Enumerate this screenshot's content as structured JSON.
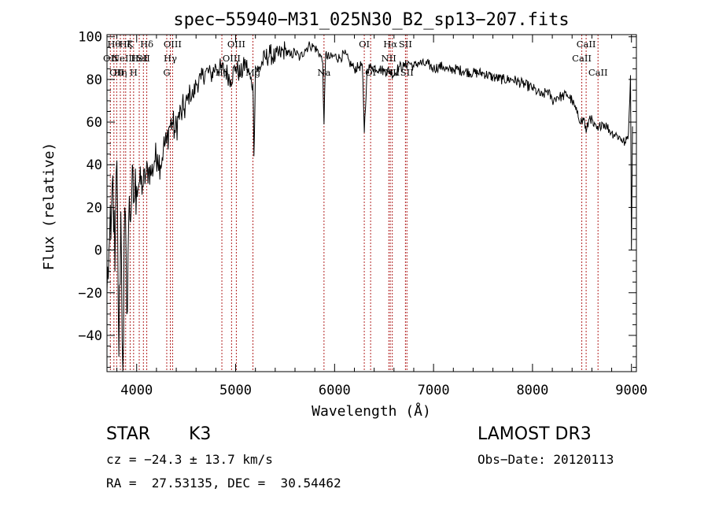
{
  "chart_data": {
    "type": "line",
    "title": "spec−55940−M31_025N30_B2_sp13−207.fits",
    "xlabel": "Wavelength (Å)",
    "ylabel": "Flux (relative)",
    "xlim": [
      3700,
      9050
    ],
    "ylim": [
      -57,
      101
    ],
    "xticks": [
      4000,
      5000,
      6000,
      7000,
      8000,
      9000
    ],
    "xtick_labels": [
      "4000",
      "5000",
      "6000",
      "7000",
      "8000",
      "9000"
    ],
    "yticks": [
      -40,
      -20,
      0,
      20,
      40,
      60,
      80,
      100
    ],
    "ytick_labels": [
      "−40",
      "−20",
      "0",
      "20",
      "40",
      "60",
      "80",
      "100"
    ],
    "series": [
      {
        "name": "flux",
        "x": [
          3700,
          3720,
          3740,
          3760,
          3780,
          3800,
          3820,
          3840,
          3860,
          3880,
          3900,
          3920,
          3950,
          3980,
          4000,
          4030,
          4060,
          4090,
          4120,
          4150,
          4180,
          4210,
          4240,
          4270,
          4300,
          4330,
          4360,
          4390,
          4420,
          4450,
          4480,
          4510,
          4540,
          4570,
          4600,
          4650,
          4700,
          4750,
          4800,
          4850,
          4900,
          4950,
          5000,
          5050,
          5100,
          5150,
          5175,
          5185,
          5200,
          5230,
          5270,
          5300,
          5350,
          5400,
          5450,
          5500,
          5550,
          5600,
          5650,
          5700,
          5750,
          5800,
          5850,
          5880,
          5893,
          5910,
          5950,
          6000,
          6050,
          6100,
          6150,
          6200,
          6250,
          6280,
          6300,
          6330,
          6380,
          6450,
          6500,
          6560,
          6600,
          6650,
          6700,
          6750,
          6800,
          6850,
          6900,
          6950,
          7000,
          7050,
          7100,
          7150,
          7200,
          7300,
          7400,
          7500,
          7600,
          7700,
          7800,
          7900,
          8000,
          8050,
          8100,
          8150,
          8200,
          8250,
          8300,
          8350,
          8400,
          8450,
          8498,
          8520,
          8542,
          8580,
          8620,
          8662,
          8700,
          8750,
          8800,
          8850,
          8900,
          8940,
          8970,
          8990,
          9000,
          9010
        ],
        "y": [
          -20,
          0,
          5,
          35,
          -10,
          42,
          -50,
          18,
          -58,
          20,
          -30,
          15,
          25,
          25,
          30,
          32,
          30,
          35,
          38,
          36,
          42,
          45,
          40,
          48,
          50,
          58,
          60,
          55,
          62,
          64,
          66,
          70,
          74,
          72,
          78,
          80,
          84,
          82,
          86,
          85,
          84,
          80,
          86,
          82,
          88,
          80,
          78,
          44,
          86,
          84,
          88,
          90,
          92,
          90,
          92,
          94,
          91,
          93,
          90,
          94,
          96,
          95,
          92,
          88,
          59,
          92,
          90,
          91,
          90,
          92,
          88,
          85,
          86,
          87,
          55,
          85,
          86,
          85,
          84,
          84,
          82,
          86,
          86,
          88,
          86,
          88,
          87,
          87,
          85,
          86,
          86,
          84,
          85,
          84,
          83,
          83,
          81,
          80,
          80,
          78,
          76,
          74,
          72,
          75,
          70,
          72,
          72,
          73,
          70,
          64,
          60,
          62,
          55,
          63,
          58,
          56,
          60,
          58,
          55,
          54,
          52,
          50,
          55,
          82,
          0,
          58
        ]
      }
    ],
    "lines": [
      {
        "w": 3734,
        "label": "OII",
        "row": 2
      },
      {
        "w": 3770,
        "label": "Hθ",
        "row": 1
      },
      {
        "w": 3798,
        "label": "OII",
        "row": 3
      },
      {
        "w": 3835,
        "label": "Hη",
        "row": 3
      },
      {
        "w": 3869,
        "label": "NeIII",
        "row": 2
      },
      {
        "w": 3889,
        "label": "Hζ",
        "row": 1
      },
      {
        "w": 3934,
        "label": "K",
        "row": 1
      },
      {
        "w": 3969,
        "label": "H",
        "row": 3
      },
      {
        "w": 4026,
        "label": "HeI",
        "row": 2
      },
      {
        "w": 4068,
        "label": "SII",
        "row": 2
      },
      {
        "w": 4102,
        "label": "Hδ",
        "row": 1
      },
      {
        "w": 4304,
        "label": "G",
        "row": 3
      },
      {
        "w": 4340,
        "label": "Hγ",
        "row": 2
      },
      {
        "w": 4363,
        "label": "OIII",
        "row": 1
      },
      {
        "w": 4861,
        "label": "Hβ",
        "row": 3
      },
      {
        "w": 4959,
        "label": "OIII",
        "row": 2
      },
      {
        "w": 5007,
        "label": "OIII",
        "row": 1
      },
      {
        "w": 5175,
        "label": "Mg",
        "row": 3
      },
      {
        "w": 5893,
        "label": "Na",
        "row": 3
      },
      {
        "w": 6300,
        "label": "OI",
        "row": 1
      },
      {
        "w": 6364,
        "label": "OI",
        "row": 3
      },
      {
        "w": 6548,
        "label": "NII",
        "row": 2
      },
      {
        "w": 6563,
        "label": "Hα",
        "row": 1
      },
      {
        "w": 6583,
        "label": "NII",
        "row": 3
      },
      {
        "w": 6716,
        "label": "SII",
        "row": 1
      },
      {
        "w": 6731,
        "label": "SII",
        "row": 3
      },
      {
        "w": 8498,
        "label": "CaII",
        "row": 2
      },
      {
        "w": 8542,
        "label": "CaII",
        "row": 1
      },
      {
        "w": 8662,
        "label": "CaII",
        "row": 3
      }
    ]
  },
  "info": {
    "class": "STAR",
    "subclass": "K3",
    "survey": "LAMOST DR3",
    "cz": "cz = −24.3 ± 13.7 km/s",
    "obs_date": "Obs−Date: 20120113",
    "coords": "RA =  27.53135, DEC =  30.54462"
  },
  "colors": {
    "line_marker": "#b22222",
    "spectrum": "#000000"
  }
}
